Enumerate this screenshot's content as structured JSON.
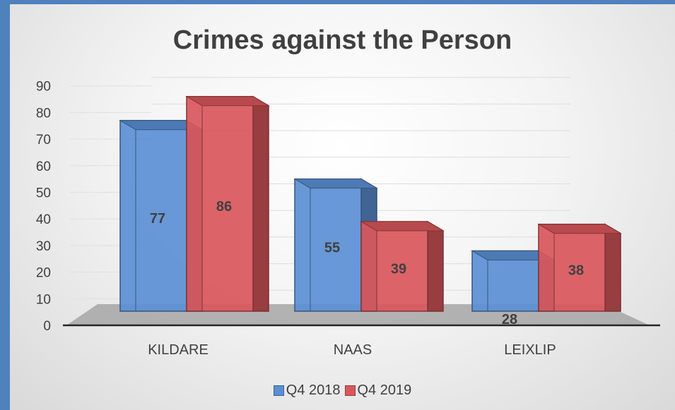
{
  "chart_data": {
    "type": "bar",
    "title": "Crimes against the Person",
    "categories": [
      "KILDARE",
      "NAAS",
      "LEIXLIP"
    ],
    "series": [
      {
        "name": "Q4 2018",
        "values": [
          77,
          55,
          28
        ],
        "color": "#5b8fd4"
      },
      {
        "name": "Q4 2019",
        "values": [
          86,
          39,
          38
        ],
        "color": "#d9575b"
      }
    ],
    "ylim": [
      0,
      90
    ],
    "yticks": [
      0,
      10,
      20,
      30,
      40,
      50,
      60,
      70,
      80,
      90
    ],
    "grid": true,
    "legend_position": "bottom",
    "style": "3d-clustered-column"
  }
}
